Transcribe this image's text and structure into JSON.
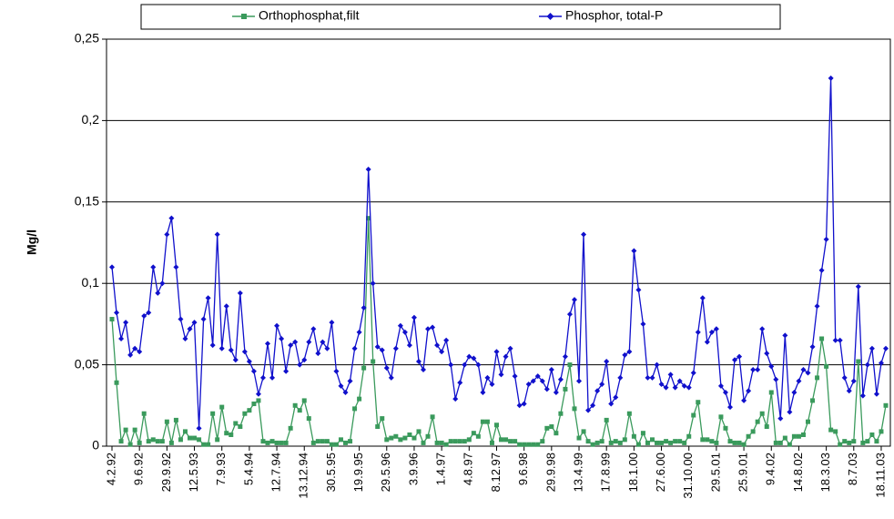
{
  "chart_data": {
    "type": "line",
    "y_label": "Mg/l",
    "categories": [
      "4.2.92",
      null,
      null,
      null,
      null,
      null,
      "9.6.92",
      null,
      null,
      null,
      null,
      null,
      "29.9.92",
      null,
      null,
      null,
      null,
      null,
      "12.5.93",
      null,
      null,
      null,
      null,
      null,
      "7.9.93",
      null,
      null,
      null,
      null,
      null,
      "5.4.94",
      null,
      null,
      null,
      null,
      null,
      "12.7.94",
      null,
      null,
      null,
      null,
      null,
      "13.12.94",
      null,
      null,
      null,
      null,
      null,
      "30.5.95",
      null,
      null,
      null,
      null,
      null,
      "19.9.95",
      null,
      null,
      null,
      null,
      null,
      "29.5.96",
      null,
      null,
      null,
      null,
      null,
      "3.9.96",
      null,
      null,
      null,
      null,
      null,
      "1.4.97",
      null,
      null,
      null,
      null,
      null,
      "4.8.97",
      null,
      null,
      null,
      null,
      null,
      "8.12.97",
      null,
      null,
      null,
      null,
      null,
      "9.6.98",
      null,
      null,
      null,
      null,
      null,
      "29.9.98",
      null,
      null,
      null,
      null,
      null,
      "13.4.99",
      null,
      null,
      null,
      null,
      null,
      "17.8.99",
      null,
      null,
      null,
      null,
      null,
      "18.1.00",
      null,
      null,
      null,
      null,
      null,
      "27.6.00",
      null,
      null,
      null,
      null,
      null,
      "31.10.00",
      null,
      null,
      null,
      null,
      null,
      "29.5.01",
      null,
      null,
      null,
      null,
      null,
      "25.9.01",
      null,
      null,
      null,
      null,
      null,
      "9.4.02",
      null,
      null,
      null,
      null,
      null,
      "14.8.02",
      null,
      null,
      null,
      null,
      null,
      "18.3.03",
      null,
      null,
      null,
      null,
      null,
      "8.7.03",
      null,
      null,
      null,
      null,
      null,
      "18.11.03",
      null
    ],
    "series": [
      {
        "name": "Orthophosphat,filt",
        "color": "#3a9a5c",
        "marker": "square",
        "values": [
          0.078,
          0.039,
          0.003,
          0.01,
          0.001,
          0.01,
          0.002,
          0.02,
          0.003,
          0.004,
          0.003,
          0.003,
          0.015,
          0.002,
          0.016,
          0.004,
          0.009,
          0.005,
          0.005,
          0.004,
          0.001,
          0.001,
          0.02,
          0.004,
          0.024,
          0.008,
          0.007,
          0.014,
          0.012,
          0.02,
          0.022,
          0.026,
          0.028,
          0.003,
          0.002,
          0.003,
          0.002,
          0.002,
          0.002,
          0.011,
          0.025,
          0.022,
          0.028,
          0.017,
          0.002,
          0.003,
          0.003,
          0.003,
          0.001,
          0.001,
          0.004,
          0.002,
          0.003,
          0.023,
          0.029,
          0.048,
          0.14,
          0.052,
          0.012,
          0.017,
          0.004,
          0.005,
          0.006,
          0.004,
          0.005,
          0.007,
          0.005,
          0.009,
          0.002,
          0.006,
          0.018,
          0.002,
          0.002,
          0.001,
          0.003,
          0.003,
          0.003,
          0.003,
          0.004,
          0.008,
          0.006,
          0.015,
          0.015,
          0.002,
          0.013,
          0.004,
          0.004,
          0.003,
          0.003,
          0.001,
          0.001,
          0.001,
          0.001,
          0.001,
          0.003,
          0.011,
          0.012,
          0.008,
          0.02,
          0.035,
          0.05,
          0.023,
          0.005,
          0.009,
          0.003,
          0.001,
          0.002,
          0.003,
          0.016,
          0.002,
          0.003,
          0.002,
          0.004,
          0.02,
          0.006,
          0.001,
          0.008,
          0.002,
          0.004,
          0.002,
          0.002,
          0.003,
          0.002,
          0.003,
          0.003,
          0.002,
          0.006,
          0.019,
          0.027,
          0.004,
          0.004,
          0.003,
          0.002,
          0.018,
          0.011,
          0.003,
          0.002,
          0.002,
          0.001,
          0.006,
          0.009,
          0.015,
          0.02,
          0.012,
          0.033,
          0.002,
          0.002,
          0.005,
          0.001,
          0.006,
          0.006,
          0.007,
          0.015,
          0.028,
          0.042,
          0.066,
          0.049,
          0.01,
          0.009,
          0.001,
          0.003,
          0.002,
          0.003,
          0.052,
          0.002,
          0.003,
          0.007,
          0.003,
          0.009,
          0.025
        ]
      },
      {
        "name": "Phosphor, total-P",
        "color": "#1010cc",
        "marker": "diamond",
        "values": [
          0.11,
          0.082,
          0.066,
          0.076,
          0.056,
          0.06,
          0.058,
          0.08,
          0.082,
          0.11,
          0.094,
          0.1,
          0.13,
          0.14,
          0.11,
          0.078,
          0.066,
          0.072,
          0.076,
          0.011,
          0.078,
          0.091,
          0.062,
          0.13,
          0.06,
          0.086,
          0.059,
          0.053,
          0.094,
          0.058,
          0.052,
          0.046,
          0.032,
          0.042,
          0.063,
          0.042,
          0.074,
          0.066,
          0.046,
          0.062,
          0.064,
          0.05,
          0.053,
          0.064,
          0.072,
          0.057,
          0.064,
          0.06,
          0.076,
          0.046,
          0.037,
          0.033,
          0.04,
          0.06,
          0.07,
          0.085,
          0.17,
          0.1,
          0.061,
          0.059,
          0.048,
          0.042,
          0.06,
          0.074,
          0.07,
          0.062,
          0.079,
          0.052,
          0.047,
          0.072,
          0.073,
          0.062,
          0.058,
          0.065,
          0.05,
          0.029,
          0.039,
          0.05,
          0.055,
          0.054,
          0.05,
          0.033,
          0.042,
          0.038,
          0.058,
          0.044,
          0.055,
          0.06,
          0.043,
          0.025,
          0.026,
          0.038,
          0.04,
          0.043,
          0.04,
          0.035,
          0.047,
          0.033,
          0.041,
          0.055,
          0.081,
          0.09,
          0.04,
          0.13,
          0.022,
          0.025,
          0.034,
          0.038,
          0.052,
          0.026,
          0.03,
          0.042,
          0.056,
          0.058,
          0.12,
          0.096,
          0.075,
          0.042,
          0.042,
          0.05,
          0.038,
          0.036,
          0.044,
          0.036,
          0.04,
          0.037,
          0.036,
          0.045,
          0.07,
          0.091,
          0.064,
          0.07,
          0.072,
          0.037,
          0.033,
          0.024,
          0.053,
          0.055,
          0.028,
          0.034,
          0.047,
          0.047,
          0.072,
          0.057,
          0.049,
          0.041,
          0.017,
          0.068,
          0.021,
          0.033,
          0.04,
          0.047,
          0.045,
          0.061,
          0.086,
          0.108,
          0.127,
          0.226,
          0.065,
          0.065,
          0.042,
          0.034,
          0.04,
          0.098,
          0.031,
          0.05,
          0.06,
          0.032,
          0.051,
          0.06
        ]
      }
    ],
    "ylim": [
      0,
      0.25
    ],
    "yticks": [
      0,
      {
        "value": 0.05,
        "label": "0,05"
      },
      {
        "value": 0.1,
        "label": "0,1"
      },
      {
        "value": 0.15,
        "label": "0,15"
      },
      {
        "value": 0.2,
        "label": "0,2"
      },
      {
        "value": 0.25,
        "label": "0,25"
      }
    ],
    "grid": true,
    "legend": "top"
  }
}
